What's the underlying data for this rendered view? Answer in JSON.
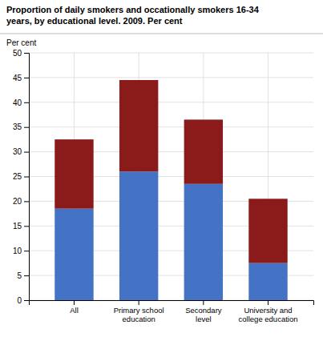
{
  "chart_data": {
    "type": "bar",
    "stacked": true,
    "title": "Proportion of daily smokers and occationally smokers 16-34\nyears, by educational level. 2009. Per cent",
    "ylabel": "Per cent",
    "categories": [
      "All",
      "Primary school\neducation",
      "Secondary\nlevel",
      "University and\ncollege education"
    ],
    "series": [
      {
        "color": "#4472c4",
        "values": [
          18.5,
          26.0,
          23.5,
          7.5
        ]
      },
      {
        "color": "#8b1a1a",
        "values": [
          14.0,
          18.5,
          13.0,
          13.0
        ]
      }
    ],
    "ylim": [
      0,
      50
    ],
    "yticks": [
      0,
      5,
      10,
      15,
      20,
      25,
      30,
      35,
      40,
      45,
      50
    ],
    "grid": true
  }
}
